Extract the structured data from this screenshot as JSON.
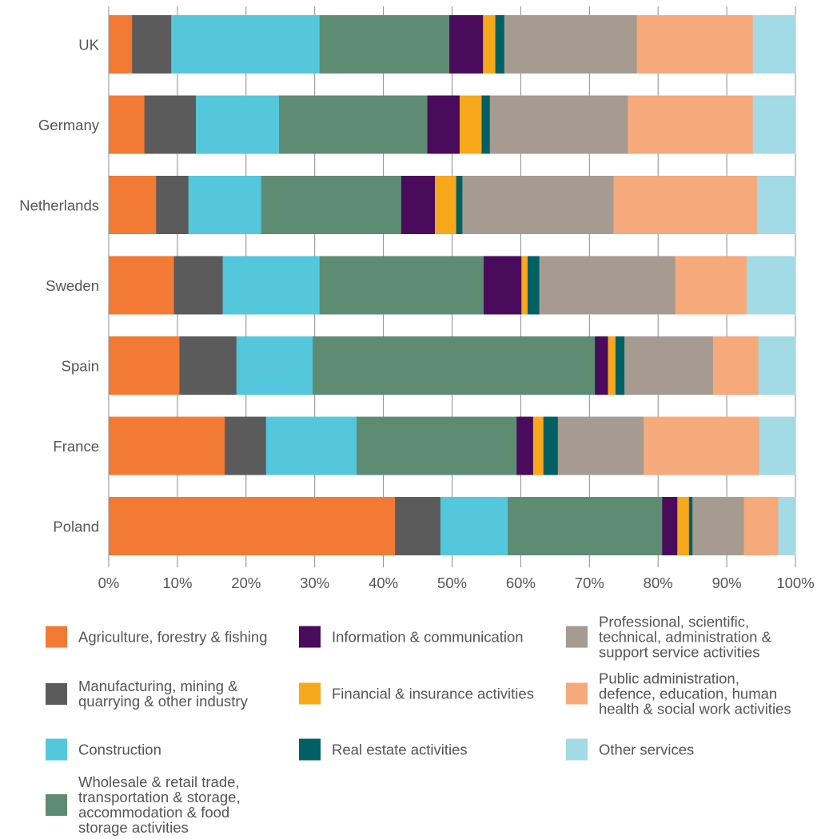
{
  "chart_data": {
    "type": "bar",
    "orientation": "horizontal",
    "stacked": true,
    "percent": true,
    "categories": [
      "UK",
      "Germany",
      "Netherlands",
      "Sweden",
      "Spain",
      "France",
      "Poland"
    ],
    "x_ticks": [
      "0%",
      "10%",
      "20%",
      "30%",
      "40%",
      "50%",
      "60%",
      "70%",
      "80%",
      "90%",
      "100%"
    ],
    "xlim": [
      0,
      100
    ],
    "grid": true,
    "legend_position": "bottom",
    "series": [
      {
        "name": "Agriculture, forestry & fishing",
        "color": "#F37A35",
        "values": [
          3.4,
          5.2,
          6.9,
          9.5,
          10.3,
          16.9,
          41.7
        ]
      },
      {
        "name": "Manufacturing, mining & quarrying & other industry",
        "color": "#5B5B5B",
        "values": [
          5.7,
          7.5,
          4.7,
          7.1,
          8.3,
          6.0,
          6.6
        ]
      },
      {
        "name": "Construction",
        "color": "#54C7DC",
        "values": [
          21.6,
          12.1,
          10.6,
          14.1,
          11.1,
          13.2,
          9.8
        ]
      },
      {
        "name": "Wholesale & retail trade, transportation & storage, accommodation & food storage activities",
        "color": "#5D8C73",
        "values": [
          18.9,
          21.6,
          20.4,
          23.9,
          41.1,
          23.3,
          22.5
        ]
      },
      {
        "name": "Information & communication",
        "color": "#4A0B5C",
        "values": [
          4.9,
          4.7,
          4.9,
          5.5,
          1.9,
          2.4,
          2.2
        ]
      },
      {
        "name": "Financial & insurance activities",
        "color": "#F7A81B",
        "values": [
          1.8,
          3.2,
          3.1,
          0.9,
          1.1,
          1.5,
          1.7
        ]
      },
      {
        "name": "Real estate activities",
        "color": "#006064",
        "values": [
          1.3,
          1.2,
          0.9,
          1.7,
          1.3,
          2.1,
          0.5
        ]
      },
      {
        "name": "Professional, scientific, technical, administration & support service activities",
        "color": "#A69B91",
        "values": [
          19.3,
          20.1,
          22.0,
          19.8,
          12.9,
          12.5,
          7.5
        ]
      },
      {
        "name": "Public administration, defence, education, human health & social work activities",
        "color": "#F6A97A",
        "values": [
          16.9,
          18.2,
          20.9,
          10.4,
          6.6,
          16.8,
          5.0
        ]
      },
      {
        "name": "Other services",
        "color": "#A2DAE6",
        "values": [
          6.2,
          6.2,
          5.6,
          7.1,
          5.4,
          5.3,
          2.5
        ]
      }
    ]
  },
  "legend": [
    {
      "label": "Agriculture, forestry & fishing",
      "color": "#F37A35"
    },
    {
      "label": "Information & communication",
      "color": "#4A0B5C"
    },
    {
      "label": "Professional, scientific,\ntechnical, administration &\nsupport service activities",
      "color": "#A69B91"
    },
    {
      "label": "Manufacturing, mining &\nquarrying & other industry",
      "color": "#5B5B5B"
    },
    {
      "label": "Financial & insurance activities",
      "color": "#F7A81B"
    },
    {
      "label": "Public administration,\ndefence, education, human\nhealth & social work activities",
      "color": "#F6A97A"
    },
    {
      "label": "Construction",
      "color": "#54C7DC"
    },
    {
      "label": "Real estate activities",
      "color": "#006064"
    },
    {
      "label": "Other services",
      "color": "#A2DAE6"
    },
    {
      "label": "Wholesale & retail trade,\ntransportation & storage,\naccommodation & food\nstorage activities",
      "color": "#5D8C73"
    }
  ]
}
